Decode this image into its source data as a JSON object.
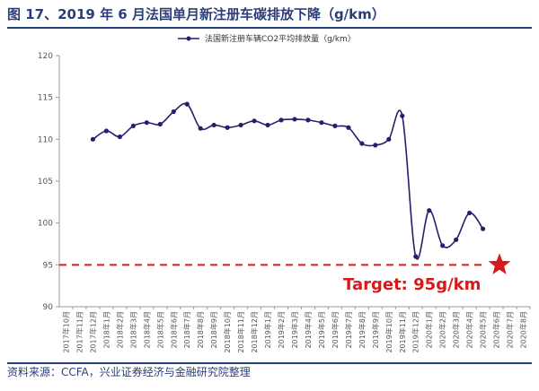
{
  "header": {
    "title": "图 17、2019 年 6 月法国单月新注册车碳排放下降（g/km）"
  },
  "footer": {
    "source": "资料来源：CCFA，兴业证券经济与金融研究院整理"
  },
  "colors": {
    "line": "#2e1a6e",
    "target": "#d7191c",
    "axis": "#999999",
    "rule": "#23407a"
  },
  "chart_data": {
    "type": "line",
    "categories": [
      "2017年10月",
      "2017年11月",
      "2017年12月",
      "2018年1月",
      "2018年2月",
      "2018年3月",
      "2018年4月",
      "2018年5月",
      "2018年6月",
      "2018年7月",
      "2018年8月",
      "2018年9月",
      "2018年10月",
      "2018年11月",
      "2018年12月",
      "2019年1月",
      "2019年2月",
      "2019年3月",
      "2019年4月",
      "2019年5月",
      "2019年6月",
      "2019年7月",
      "2019年8月",
      "2019年9月",
      "2019年10月",
      "2019年11月",
      "2019年12月",
      "2020年1月",
      "2020年2月",
      "2020年3月",
      "2020年4月",
      "2020年5月",
      "2020年6月",
      "2020年7月",
      "2020年8月"
    ],
    "series": [
      {
        "name": "法国新注册车辆CO2平均排放量（g/km）",
        "values": [
          null,
          null,
          110.0,
          111.0,
          110.3,
          111.6,
          112.0,
          111.8,
          113.3,
          114.2,
          111.3,
          111.7,
          111.4,
          111.7,
          112.2,
          111.7,
          112.3,
          112.4,
          112.3,
          112.0,
          111.6,
          111.4,
          109.5,
          109.3,
          110.0,
          112.8,
          96.0,
          101.5,
          97.3,
          98.0,
          101.2,
          99.3,
          null,
          null,
          null
        ]
      }
    ],
    "ylim": [
      90,
      120
    ],
    "yticks": [
      90,
      95,
      100,
      105,
      110,
      115,
      120
    ],
    "target": {
      "value": 95,
      "label": "Target: 95g/km"
    },
    "grid": false,
    "legend_position": "top-center"
  }
}
